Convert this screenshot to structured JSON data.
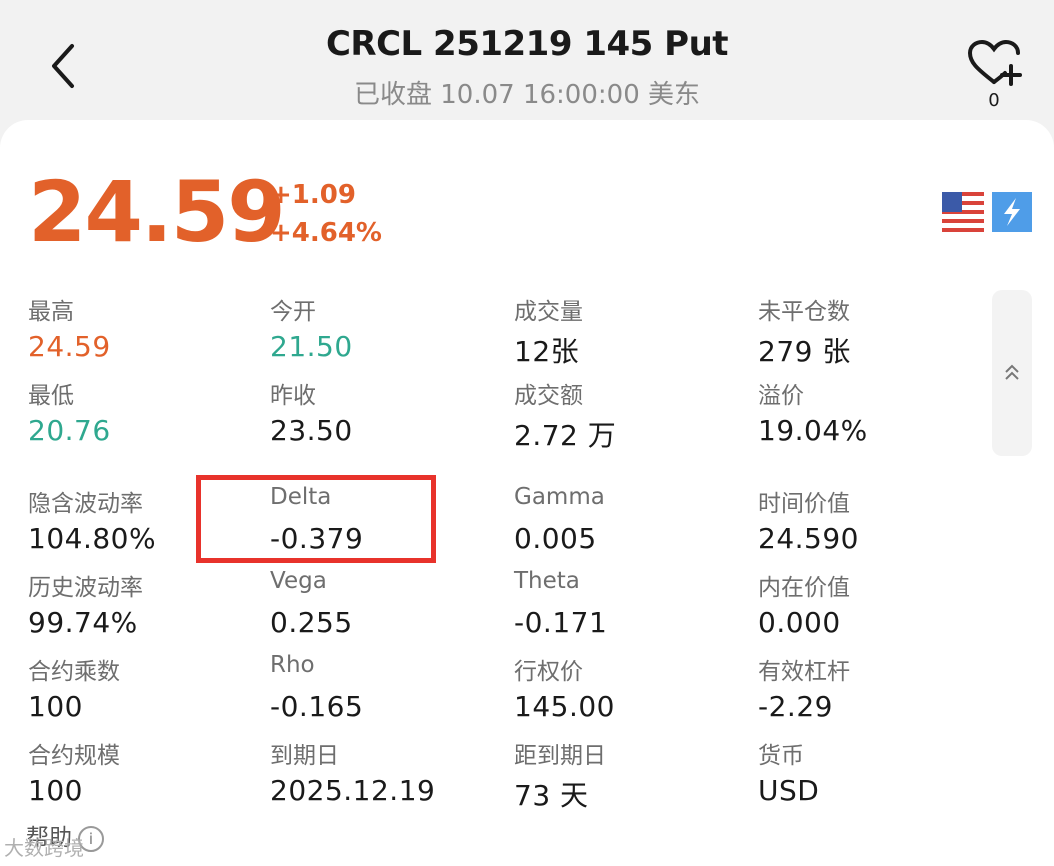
{
  "header": {
    "title": "CRCL 251219 145 Put",
    "status": "已收盘 10.07 16:00:00 美东",
    "favorite_count": "0"
  },
  "quote": {
    "price": "24.59",
    "change": "+1.09",
    "change_pct": "+4.64%",
    "accent_color": "#e2612a"
  },
  "stats": [
    {
      "label": "最高",
      "value": "24.59",
      "tone": "up"
    },
    {
      "label": "今开",
      "value": "21.50",
      "tone": "down"
    },
    {
      "label": "成交量",
      "value": "12张"
    },
    {
      "label": "未平仓数",
      "value": "279 张"
    },
    {
      "label": "最低",
      "value": "20.76",
      "tone": "down"
    },
    {
      "label": "昨收",
      "value": "23.50"
    },
    {
      "label": "成交额",
      "value": "2.72 万"
    },
    {
      "label": "溢价",
      "value": "19.04%"
    },
    {
      "label": "隐含波动率",
      "value": "104.80%"
    },
    {
      "label": "Delta",
      "value": "-0.379"
    },
    {
      "label": "Gamma",
      "value": "0.005"
    },
    {
      "label": "时间价值",
      "value": "24.590"
    },
    {
      "label": "历史波动率",
      "value": "99.74%"
    },
    {
      "label": "Vega",
      "value": "0.255"
    },
    {
      "label": "Theta",
      "value": "-0.171"
    },
    {
      "label": "内在价值",
      "value": "0.000"
    },
    {
      "label": "合约乘数",
      "value": "100"
    },
    {
      "label": "Rho",
      "value": "-0.165"
    },
    {
      "label": "行权价",
      "value": "145.00"
    },
    {
      "label": "有效杠杆",
      "value": "-2.29"
    },
    {
      "label": "合约规模",
      "value": "100"
    },
    {
      "label": "到期日",
      "value": "2025.12.19"
    },
    {
      "label": "距到期日",
      "value": "73 天"
    },
    {
      "label": "货币",
      "value": "USD"
    }
  ],
  "help": {
    "label": "帮助"
  },
  "watermark": "大数跨境"
}
